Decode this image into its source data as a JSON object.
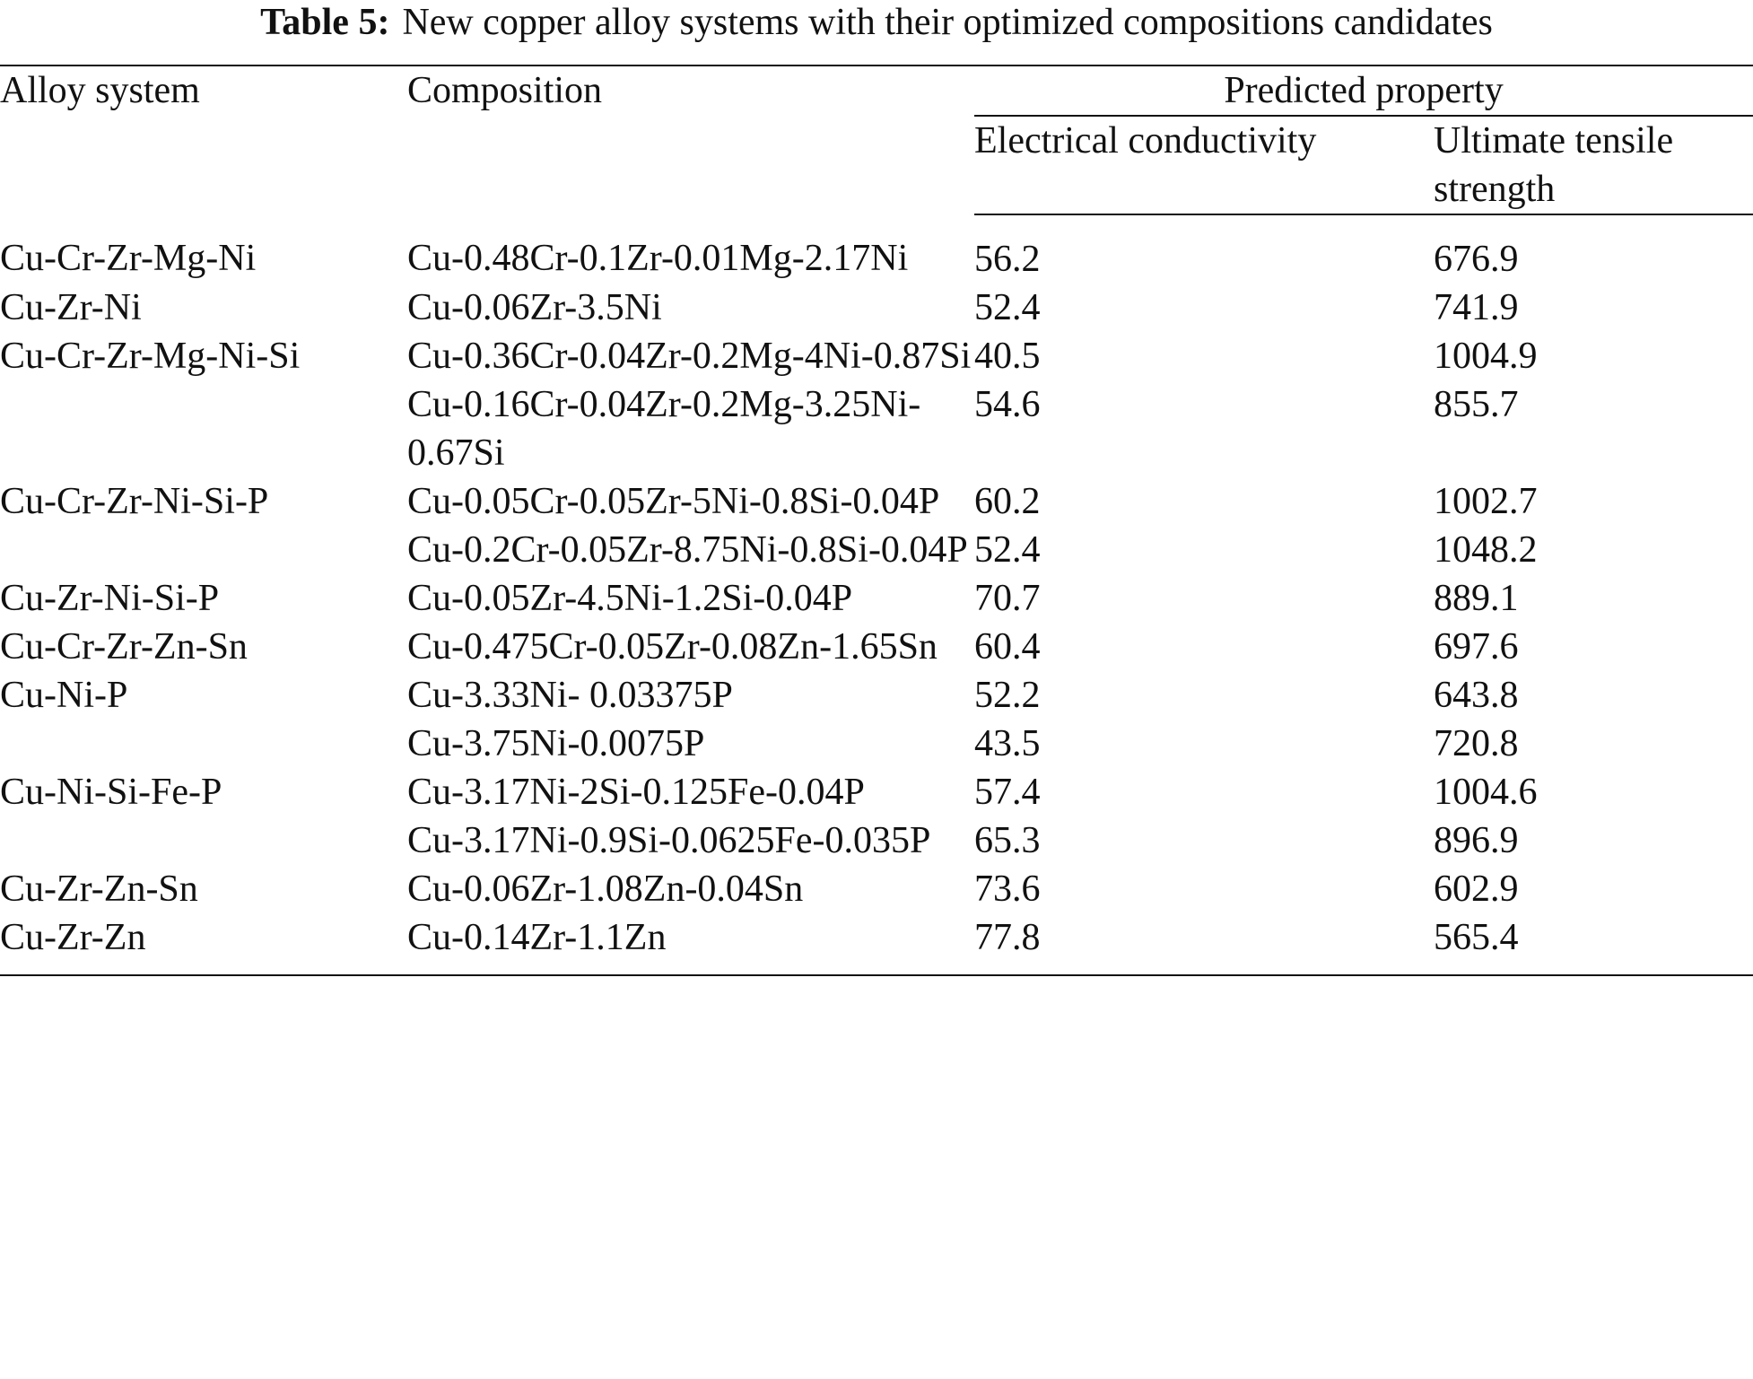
{
  "caption": {
    "label": "Table 5:",
    "text": "New copper alloy systems with their optimized compositions candidates"
  },
  "headers": {
    "alloy_system": "Alloy system",
    "composition": "Composition",
    "predicted_property": "Predicted property",
    "electrical_conductivity": "Electrical conductivity",
    "ultimate_tensile_strength": "Ultimate tensile strength"
  },
  "rows": [
    {
      "system": "Cu-Cr-Zr-Mg-Ni",
      "composition": "Cu-0.48Cr-0.1Zr-0.01Mg-2.17Ni",
      "ec": "56.2",
      "uts": "676.9"
    },
    {
      "system": "Cu-Zr-Ni",
      "composition": "Cu-0.06Zr-3.5Ni",
      "ec": "52.4",
      "uts": "741.9"
    },
    {
      "system": "Cu-Cr-Zr-Mg-Ni-Si",
      "composition": "Cu-0.36Cr-0.04Zr-0.2Mg-4Ni-0.87Si",
      "ec": "40.5",
      "uts": "1004.9"
    },
    {
      "system": "",
      "composition": "Cu-0.16Cr-0.04Zr-0.2Mg-3.25Ni-0.67Si",
      "ec": "54.6",
      "uts": "855.7"
    },
    {
      "system": "Cu-Cr-Zr-Ni-Si-P",
      "composition": "Cu-0.05Cr-0.05Zr-5Ni-0.8Si-0.04P",
      "ec": "60.2",
      "uts": "1002.7"
    },
    {
      "system": "",
      "composition": "Cu-0.2Cr-0.05Zr-8.75Ni-0.8Si-0.04P",
      "ec": "52.4",
      "uts": "1048.2"
    },
    {
      "system": "Cu-Zr-Ni-Si-P",
      "composition": "Cu-0.05Zr-4.5Ni-1.2Si-0.04P",
      "ec": "70.7",
      "uts": "889.1"
    },
    {
      "system": "Cu-Cr-Zr-Zn-Sn",
      "composition": "Cu-0.475Cr-0.05Zr-0.08Zn-1.65Sn",
      "ec": "60.4",
      "uts": "697.6"
    },
    {
      "system": "Cu-Ni-P",
      "composition": "Cu-3.33Ni- 0.03375P",
      "ec": "52.2",
      "uts": "643.8"
    },
    {
      "system": "",
      "composition": "Cu-3.75Ni-0.0075P",
      "ec": "43.5",
      "uts": "720.8"
    },
    {
      "system": "Cu-Ni-Si-Fe-P",
      "composition": "Cu-3.17Ni-2Si-0.125Fe-0.04P",
      "ec": "57.4",
      "uts": "1004.6"
    },
    {
      "system": "",
      "composition": "Cu-3.17Ni-0.9Si-0.0625Fe-0.035P",
      "ec": "65.3",
      "uts": "896.9"
    },
    {
      "system": "Cu-Zr-Zn-Sn",
      "composition": "Cu-0.06Zr-1.08Zn-0.04Sn",
      "ec": "73.6",
      "uts": "602.9"
    },
    {
      "system": "Cu-Zr-Zn",
      "composition": "Cu-0.14Zr-1.1Zn",
      "ec": "77.8",
      "uts": "565.4"
    }
  ]
}
